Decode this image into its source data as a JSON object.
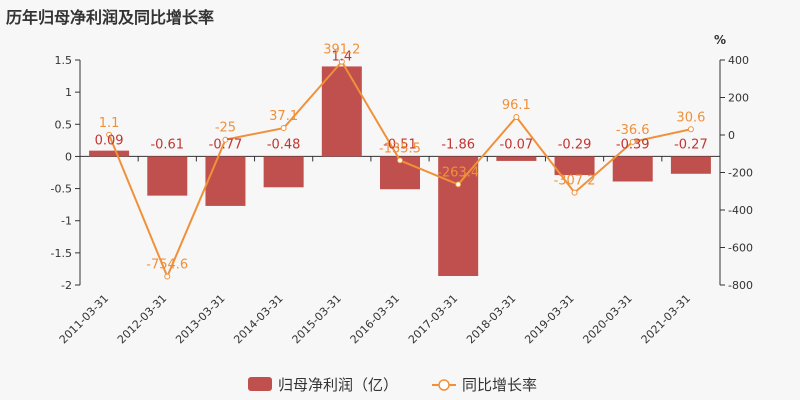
{
  "chart_data": {
    "type": "bar",
    "title": "历年归母净利润及同比增长率",
    "categories": [
      "2011-03-31",
      "2012-03-31",
      "2013-03-31",
      "2014-03-31",
      "2015-03-31",
      "2016-03-31",
      "2017-03-31",
      "2018-03-31",
      "2019-03-31",
      "2020-03-31",
      "2021-03-31"
    ],
    "series": [
      {
        "name": "归母净利润（亿）",
        "type": "bar",
        "axis": "left",
        "color": "#c0504d",
        "values": [
          0.09,
          -0.61,
          -0.77,
          -0.48,
          1.4,
          -0.51,
          -1.86,
          -0.07,
          -0.29,
          -0.39,
          -0.27
        ]
      },
      {
        "name": "同比增长率",
        "type": "line",
        "axis": "right",
        "color": "#f0913a",
        "values": [
          1.1,
          -754.6,
          -25,
          37.1,
          391.2,
          -135.5,
          -263.4,
          96.1,
          -307.2,
          -36.6,
          30.6
        ]
      }
    ],
    "y_left": {
      "min": -2,
      "max": 1.5,
      "ticks": [
        "1.5",
        "1",
        "0.5",
        "0",
        "-0.5",
        "-1",
        "-1.5",
        "-2"
      ]
    },
    "y_right": {
      "min": -800,
      "max": 400,
      "unit": "%",
      "ticks": [
        "400",
        "200",
        "0",
        "-200",
        "-400",
        "-600",
        "-800"
      ]
    },
    "legend_position": "bottom-center",
    "grid": false
  }
}
